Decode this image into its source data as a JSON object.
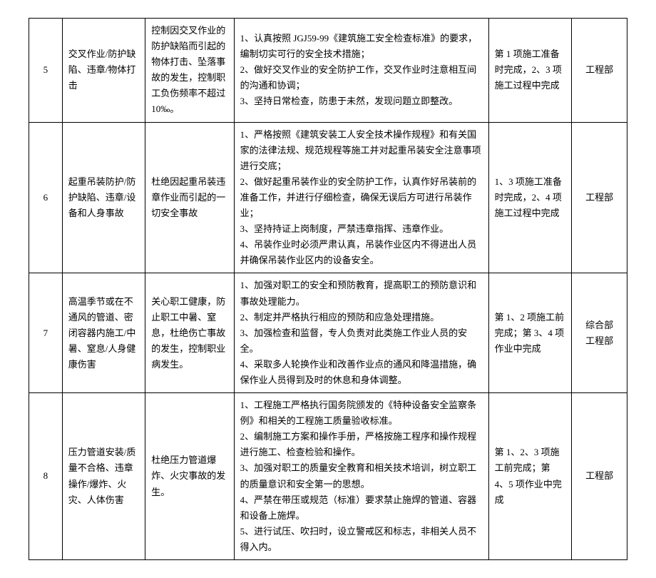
{
  "rows": [
    {
      "num": "5",
      "risk": "交叉作业/防护缺陷、违章/物体打击",
      "goal": "控制因交叉作业的防护缺陷而引起的物体打击、坠落事故的发生，控制职工负伤频率不超过 10‰。",
      "measures": [
        "1、认真按照 JGJ59-99《建筑施工安全检查标准》的要求，编制切实可行的安全技术措施；",
        "2、做好交叉作业的安全防护工作，交叉作业时注意相互间的沟通和协调；",
        "3、坚持日常检查，防患于未然，发现问题立即整改。"
      ],
      "time": "第 1 项施工准备时完成，2、3 项施工过程中完成",
      "dept": "工程部"
    },
    {
      "num": "6",
      "risk": "起重吊装防护/防护缺陷、违章/设备和人身事故",
      "goal": "杜绝因起重吊装违章作业而引起的一切安全事故",
      "measures": [
        "1、严格按照《建筑安装工人安全技术操作规程》和有关国家的法律法规、规范规程等施工并对起重吊装安全注意事项进行交底；",
        "2、做好起重吊装作业的安全防护工作，认真作好吊装前的准备工作，并进行仔细检查，确保无误后方可进行吊装作业；",
        "3、坚持持证上岗制度，严禁违章指挥、违章作业。",
        "4、吊装作业时必须严肃认真，吊装作业区内不得进出人员并确保吊装作业区内的设备安全。"
      ],
      "time": "1、3 项施工准备时完成，2、4 项施工过程中完成",
      "dept": "工程部"
    },
    {
      "num": "7",
      "risk": "高温季节或在不通风的管道、密闭容器内施工/中暑、窒息/人身健康伤害",
      "goal": "关心职工健康，防止职工中暑、窒息，杜绝伤亡事故的发生，控制职业病发生。",
      "measures": [
        "1、加强对职工的安全和预防教育，提高职工的预防意识和事故处理能力。",
        "2、制定并严格执行相应的预防和应急处理措施。",
        "3、加强检查和监督，专人负责对此类施工作业人员的安全。",
        "4、采取多人轮换作业和改善作业点的通风和降温措施，确保作业人员得到及时的休息和身体调整。"
      ],
      "time": "第 1、2 项施工前完成；第 3、4 项作业中完成",
      "dept": "综合部\n工程部"
    },
    {
      "num": "8",
      "risk": "压力管道安装/质量不合格、违章操作/爆炸、火灾、人体伤害",
      "goal": "杜绝压力管道爆炸、火灾事故的发生。",
      "measures": [
        "1、工程施工严格执行国务院颁发的《特种设备安全监察条例》和相关的工程施工质量验收标准。",
        "2、编制施工方案和操作手册，严格按施工程序和操作规程进行施工、检查检验和操作。",
        "3、加强对职工的质量安全教育和相关技术培训，树立职工的质量意识和安全第一的思想。",
        "4、严禁在带压或规范（标准）要求禁止施焊的管道、容器和设备上施焊。",
        "5、进行试压、吹扫时，设立警戒区和标志，非相关人员不得入内。"
      ],
      "time": "第 1、2、3 项施工前完成；第 4、5 项作业中完成",
      "dept": "工程部"
    }
  ]
}
